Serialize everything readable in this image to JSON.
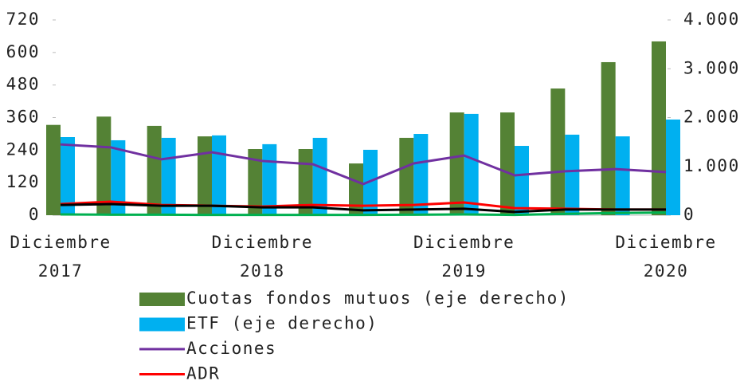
{
  "chart_data": {
    "type": "bar",
    "categories": [
      "Diciembre 2017",
      null,
      null,
      null,
      "Diciembre 2018",
      null,
      null,
      null,
      "Diciembre 2019",
      null,
      null,
      null,
      "Diciembre 2020"
    ],
    "ylim": [
      0,
      720
    ],
    "yticks": [
      0,
      120,
      240,
      360,
      480,
      600,
      720
    ],
    "y2lim": [
      0,
      4000
    ],
    "y2ticks": [
      0,
      {
        "value": 1000,
        "label": "1.000"
      },
      {
        "value": 2000,
        "label": "2.000"
      },
      {
        "value": 3000,
        "label": "3.000"
      },
      {
        "value": 4000,
        "label": "4.000"
      }
    ],
    "grid": false,
    "series": [
      {
        "name": "Cuotas fondos mutuos (eje derecho)",
        "type": "bar",
        "axis": "y2",
        "color": "#548235",
        "values": [
          1850,
          2020,
          1830,
          1615,
          1355,
          1355,
          1060,
          1585,
          2105,
          2105,
          2595,
          3135,
          3560
        ]
      },
      {
        "name": "ETF (eje derecho)",
        "type": "bar",
        "axis": "y2",
        "color": "#00b0f0",
        "values": [
          1600,
          1535,
          1585,
          1635,
          1455,
          1585,
          1340,
          1665,
          2075,
          1420,
          1650,
          1615,
          1960
        ]
      },
      {
        "name": "Acciones",
        "type": "line",
        "color": "#7030a0",
        "values": [
          261,
          250,
          206,
          232,
          200,
          188,
          115,
          191,
          220,
          147,
          162,
          170,
          159
        ]
      },
      {
        "name": "ADR",
        "type": "line",
        "color": "#ff0000",
        "values": [
          41,
          50,
          38,
          35,
          32,
          38,
          35,
          38,
          47,
          26,
          24,
          21,
          21
        ]
      },
      {
        "type": "line",
        "color": "#000000",
        "values": [
          38,
          41,
          35,
          35,
          29,
          29,
          18,
          21,
          24,
          12,
          21,
          21,
          21
        ]
      },
      {
        "type": "line",
        "color": "#00b050",
        "values": [
          3,
          2,
          2,
          1,
          1,
          1,
          1,
          2,
          3,
          1,
          5,
          8,
          10
        ]
      }
    ]
  }
}
